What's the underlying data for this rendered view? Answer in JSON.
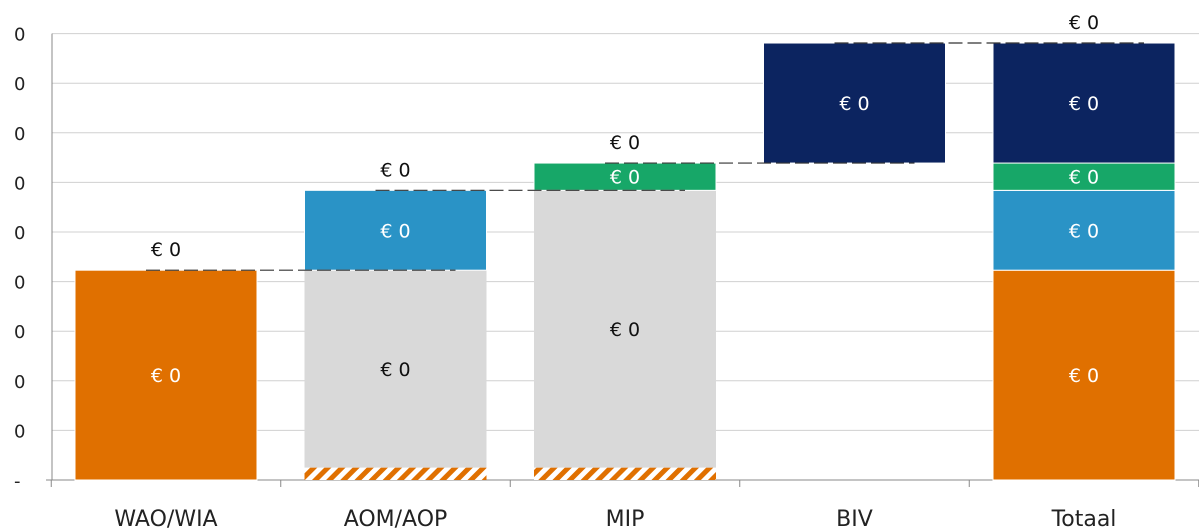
{
  "chart_data": {
    "type": "bar",
    "stacked": true,
    "waterfall": true,
    "grid": true,
    "legend": "none",
    "ylim": [
      0,
      9
    ],
    "y_ticks": [
      {
        "value": 0,
        "label": "-"
      },
      {
        "value": 1,
        "label": "0"
      },
      {
        "value": 2,
        "label": "0"
      },
      {
        "value": 3,
        "label": "0"
      },
      {
        "value": 4,
        "label": "0"
      },
      {
        "value": 5,
        "label": "0"
      },
      {
        "value": 6,
        "label": "0"
      },
      {
        "value": 7,
        "label": "0"
      },
      {
        "value": 8,
        "label": "0"
      },
      {
        "value": 9,
        "label": "0"
      }
    ],
    "categories": [
      "WAO/WIA",
      "AOM/AOP",
      "MIP",
      "BIV",
      "Totaal"
    ],
    "colors": {
      "WAO/WIA": "#e07000",
      "AOM/AOP": "#2a93c6",
      "MIP": "#17a768",
      "BIV": "#0c2460",
      "base": "#d9d9d9",
      "hatch": "#e07000",
      "gridline": "#d0d0d0",
      "connector": "#333333"
    },
    "segments": [
      {
        "category": "WAO/WIA",
        "kind": "value",
        "color": "WAO/WIA",
        "from": 0,
        "to": 4.23,
        "label": "€ 0",
        "label_color": "#ffffff"
      },
      {
        "category": "AOM/AOP",
        "kind": "hatch",
        "color": "hatch",
        "from": 0,
        "to": 0.25
      },
      {
        "category": "AOM/AOP",
        "kind": "base",
        "color": "base",
        "from": 0.25,
        "to": 4.23,
        "label": "€ 0",
        "label_color": "#111111"
      },
      {
        "category": "AOM/AOP",
        "kind": "value",
        "color": "AOM/AOP",
        "from": 4.23,
        "to": 5.84,
        "label": "€ 0",
        "label_color": "#ffffff"
      },
      {
        "category": "MIP",
        "kind": "hatch",
        "color": "hatch",
        "from": 0,
        "to": 0.25
      },
      {
        "category": "MIP",
        "kind": "base",
        "color": "base",
        "from": 0.25,
        "to": 5.84,
        "label": "€ 0",
        "label_color": "#111111"
      },
      {
        "category": "MIP",
        "kind": "value",
        "color": "MIP",
        "from": 5.84,
        "to": 6.39,
        "label": "€ 0",
        "label_color": "#ffffff"
      },
      {
        "category": "BIV",
        "kind": "value",
        "color": "BIV",
        "from": 6.39,
        "to": 8.81,
        "label": "€ 0",
        "label_color": "#ffffff"
      },
      {
        "category": "Totaal",
        "kind": "value",
        "color": "WAO/WIA",
        "from": 0,
        "to": 4.23,
        "label": "€ 0",
        "label_color": "#ffffff"
      },
      {
        "category": "Totaal",
        "kind": "value",
        "color": "AOM/AOP",
        "from": 4.23,
        "to": 5.84,
        "label": "€ 0",
        "label_color": "#ffffff"
      },
      {
        "category": "Totaal",
        "kind": "value",
        "color": "MIP",
        "from": 5.84,
        "to": 6.39,
        "label": "€ 0",
        "label_color": "#ffffff"
      },
      {
        "category": "Totaal",
        "kind": "value",
        "color": "BIV",
        "from": 6.39,
        "to": 8.81,
        "label": "€ 0",
        "label_color": "#ffffff"
      }
    ],
    "top_labels": [
      {
        "category": "WAO/WIA",
        "text": "€ 0"
      },
      {
        "category": "AOM/AOP",
        "text": "€ 0"
      },
      {
        "category": "MIP",
        "text": "€ 0"
      },
      {
        "category": "Totaal",
        "text": "€ 0"
      }
    ],
    "connectors": [
      {
        "from_category": "WAO/WIA",
        "to_category": "AOM/AOP",
        "level": 4.23
      },
      {
        "from_category": "AOM/AOP",
        "to_category": "MIP",
        "level": 5.84
      },
      {
        "from_category": "MIP",
        "to_category": "BIV",
        "level": 6.39
      },
      {
        "from_category": "BIV",
        "to_category": "Totaal",
        "level": 8.81
      }
    ]
  }
}
